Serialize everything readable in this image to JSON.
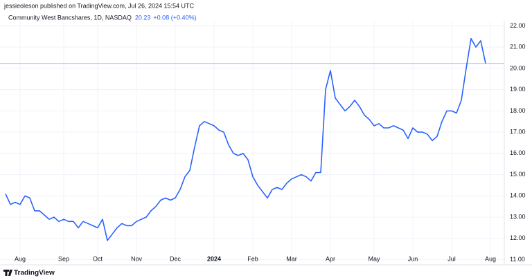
{
  "header": "jessieoleson published on TradingView.com, Jul 26, 2024 15:54 UTC",
  "footer": "TradingView",
  "chart_data": {
    "type": "line",
    "symbol": "Community West Bancshares, 1D, NASDAQ",
    "last_price": 20.23,
    "change": "+0.08 (+0.40%)",
    "categories": [
      null,
      null,
      null,
      "Aug",
      null,
      null,
      null,
      null,
      null,
      null,
      null,
      null,
      "Sep",
      null,
      null,
      null,
      null,
      null,
      null,
      "Oct",
      null,
      null,
      null,
      null,
      null,
      null,
      null,
      "Nov",
      null,
      null,
      null,
      null,
      null,
      null,
      null,
      "Dec",
      null,
      null,
      null,
      null,
      null,
      null,
      null,
      "2024",
      null,
      null,
      null,
      null,
      null,
      null,
      null,
      "Feb",
      null,
      null,
      null,
      null,
      null,
      null,
      null,
      "Mar",
      null,
      null,
      null,
      null,
      null,
      null,
      null,
      "Apr",
      null,
      null,
      null,
      null,
      null,
      null,
      null,
      null,
      "May",
      null,
      null,
      null,
      null,
      null,
      null,
      null,
      "Jun",
      null,
      null,
      null,
      null,
      null,
      null,
      null,
      "Jul",
      null,
      null,
      null,
      null,
      null,
      null,
      null,
      "Aug"
    ],
    "series": [
      {
        "name": "Community West Bancshares",
        "color": "#2962ff",
        "values": [
          14.1,
          13.6,
          13.7,
          13.6,
          14.0,
          13.9,
          13.3,
          13.3,
          13.1,
          12.9,
          13.0,
          12.8,
          12.9,
          12.8,
          12.8,
          12.5,
          12.8,
          12.7,
          12.6,
          12.5,
          12.9,
          11.9,
          12.2,
          12.5,
          12.7,
          12.6,
          12.6,
          12.8,
          12.9,
          13.0,
          13.3,
          13.5,
          13.8,
          13.9,
          13.8,
          13.9,
          14.3,
          14.9,
          15.2,
          16.3,
          17.3,
          17.5,
          17.4,
          17.3,
          17.1,
          17.0,
          16.4,
          16.0,
          15.9,
          16.0,
          15.7,
          14.9,
          14.5,
          14.2,
          13.9,
          14.3,
          14.4,
          14.3,
          14.6,
          14.8,
          14.9,
          15.0,
          14.9,
          14.7,
          15.1,
          15.1,
          19.0,
          19.9,
          18.6,
          18.3,
          18.0,
          18.2,
          18.5,
          18.2,
          17.8,
          17.6,
          17.3,
          17.4,
          17.2,
          17.2,
          17.3,
          17.2,
          17.1,
          16.7,
          17.2,
          17.0,
          17.0,
          16.9,
          16.6,
          16.8,
          17.5,
          18.0,
          18.0,
          17.9,
          18.5,
          20.0,
          21.4,
          21.0,
          21.3,
          20.23,
          null
        ]
      }
    ],
    "ylim": [
      10.76,
      22.24
    ],
    "yticks": [
      {
        "value": 11,
        "label": "11.00"
      },
      {
        "value": 12,
        "label": "12.00"
      },
      {
        "value": 13,
        "label": "13.00"
      },
      {
        "value": 14,
        "label": "14.00"
      },
      {
        "value": 15,
        "label": "15.00"
      },
      {
        "value": 16,
        "label": "16.00"
      },
      {
        "value": 17,
        "label": "17.00"
      },
      {
        "value": 18,
        "label": "18.00"
      },
      {
        "value": 19,
        "label": "19.00"
      },
      {
        "value": 20,
        "label": "20.00"
      },
      {
        "value": 21,
        "label": "21.00"
      },
      {
        "value": 22,
        "label": "22.00"
      }
    ],
    "grid": true
  }
}
